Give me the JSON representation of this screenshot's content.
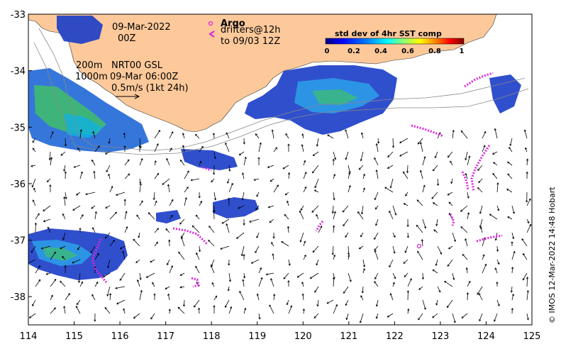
{
  "map": {
    "lon_range": [
      114,
      125
    ],
    "lat_range": [
      -38.5,
      -33
    ],
    "lon_ticks": [
      "114",
      "115",
      "116",
      "117",
      "118",
      "119",
      "120",
      "121",
      "122",
      "123",
      "124",
      "125"
    ],
    "lat_ticks": [
      "-33",
      "-34",
      "-35",
      "-36",
      "-37",
      "-38"
    ],
    "land_color": "#fdc99a",
    "ocean_color": "#ffffff"
  },
  "annotations": {
    "date": "09-Mar-2022",
    "time": "00Z",
    "depth_200": "200m",
    "depth_1000": "1000m",
    "product": "NRT00 GSL",
    "product_time": "09-Mar 06:00Z",
    "speed_scale": "0.5m/s (1kt 24h)"
  },
  "legend": {
    "argo_label": "Argo",
    "drifters_label": "drifters@12h",
    "drifters_range": "to 09/03 12Z",
    "argo_color": "#e020e0",
    "drifter_color": "#e020e0"
  },
  "colorbar": {
    "title": "std dev of 4hr SST comp",
    "ticks": [
      "0",
      "0.2",
      "0.4",
      "0.6",
      "0.8",
      "1"
    ],
    "colors": [
      "#00007f",
      "#0000ff",
      "#007fff",
      "#00ffff",
      "#7fff7f",
      "#ffff00",
      "#ff7f00",
      "#ff0000",
      "#7f0000"
    ]
  },
  "credit": "© IMOS 12-Mar-2022 14:48 Hobart"
}
